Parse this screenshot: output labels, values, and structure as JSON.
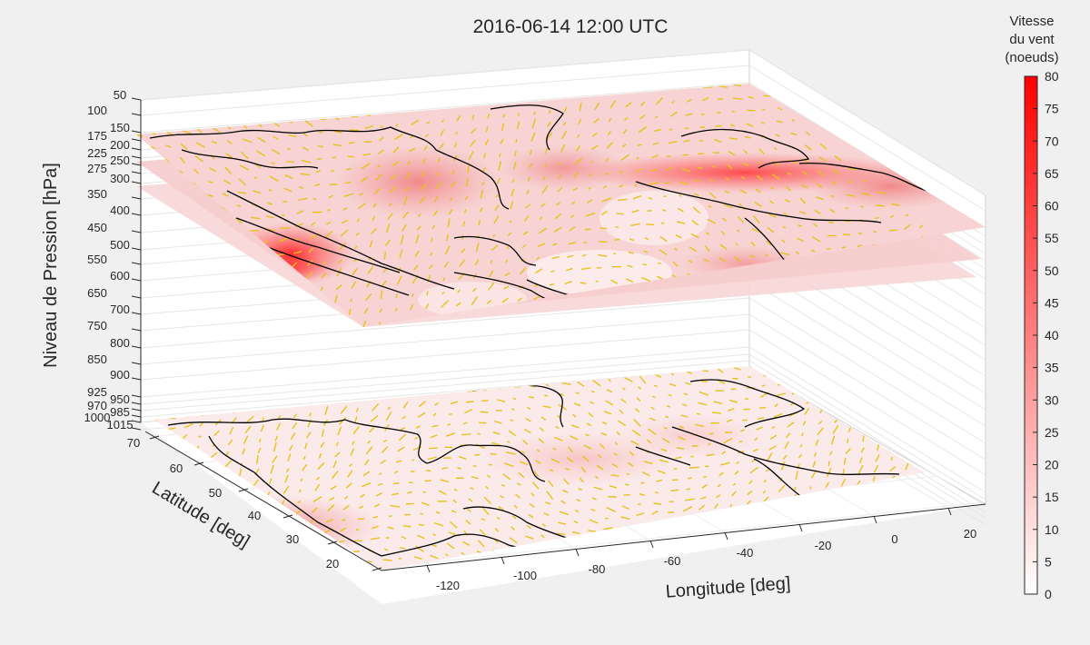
{
  "chart_data": {
    "type": "3d-surface-slices",
    "title": "2016-06-14 12:00 UTC",
    "zlabel": "Niveau de Pression [hPa]",
    "ylabel": "Latitude [deg]",
    "xlabel": "Longitude [deg]",
    "pressure_ticks": [
      "50",
      "100",
      "150",
      "175",
      "200",
      "225",
      "250",
      "275",
      "300",
      "350",
      "400",
      "450",
      "500",
      "550",
      "600",
      "650",
      "700",
      "750",
      "800",
      "850",
      "900",
      "925",
      "950",
      "970",
      "985",
      "1000",
      "1015"
    ],
    "latitude_ticks": [
      "70",
      "60",
      "50",
      "40",
      "30",
      "20"
    ],
    "longitude_ticks": [
      "-120",
      "-100",
      "-80",
      "-60",
      "-40",
      "-20",
      "0",
      "20"
    ],
    "slice_levels_hPa": [
      250,
      300,
      350,
      1000
    ],
    "colorbar": {
      "label_lines": [
        "Vitesse",
        "du vent",
        "(noeuds)"
      ],
      "ticks": [
        "0",
        "5",
        "10",
        "15",
        "20",
        "25",
        "30",
        "35",
        "40",
        "45",
        "50",
        "55",
        "60",
        "65",
        "70",
        "75",
        "80"
      ],
      "min": 0,
      "max": 80,
      "color_low": "#ffffff",
      "color_high": "#ff0000"
    },
    "vector_color": "#e6c21a",
    "coastline_color": "#000000"
  }
}
